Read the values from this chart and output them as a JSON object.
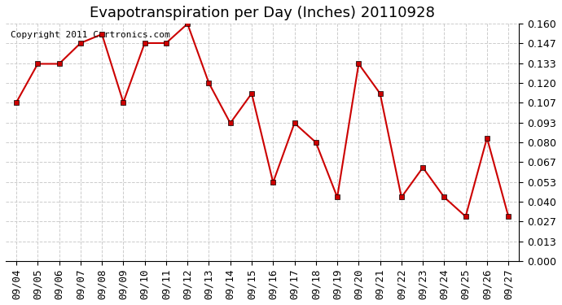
{
  "title": "Evapotranspiration per Day (Inches) 20110928",
  "copyright_text": "Copyright 2011 Cartronics.com",
  "dates": [
    "09/04",
    "09/05",
    "09/06",
    "09/07",
    "09/08",
    "09/09",
    "09/10",
    "09/11",
    "09/12",
    "09/13",
    "09/14",
    "09/15",
    "09/16",
    "09/17",
    "09/18",
    "09/19",
    "09/20",
    "09/21",
    "09/22",
    "09/23",
    "09/24",
    "09/25",
    "09/26",
    "09/27"
  ],
  "values": [
    0.107,
    0.133,
    0.133,
    0.147,
    0.153,
    0.107,
    0.147,
    0.147,
    0.16,
    0.12,
    0.093,
    0.113,
    0.053,
    0.093,
    0.08,
    0.043,
    0.133,
    0.113,
    0.043,
    0.063,
    0.043,
    0.03,
    0.083,
    0.03
  ],
  "line_color": "#cc0000",
  "marker": "s",
  "marker_size": 4,
  "marker_color": "#000000",
  "ylim": [
    0.0,
    0.16
  ],
  "yticks": [
    0.0,
    0.013,
    0.027,
    0.04,
    0.053,
    0.067,
    0.08,
    0.093,
    0.107,
    0.12,
    0.133,
    0.147,
    0.16
  ],
  "background_color": "#ffffff",
  "grid_color": "#cccccc",
  "title_fontsize": 13,
  "copyright_fontsize": 8,
  "tick_fontsize": 9
}
